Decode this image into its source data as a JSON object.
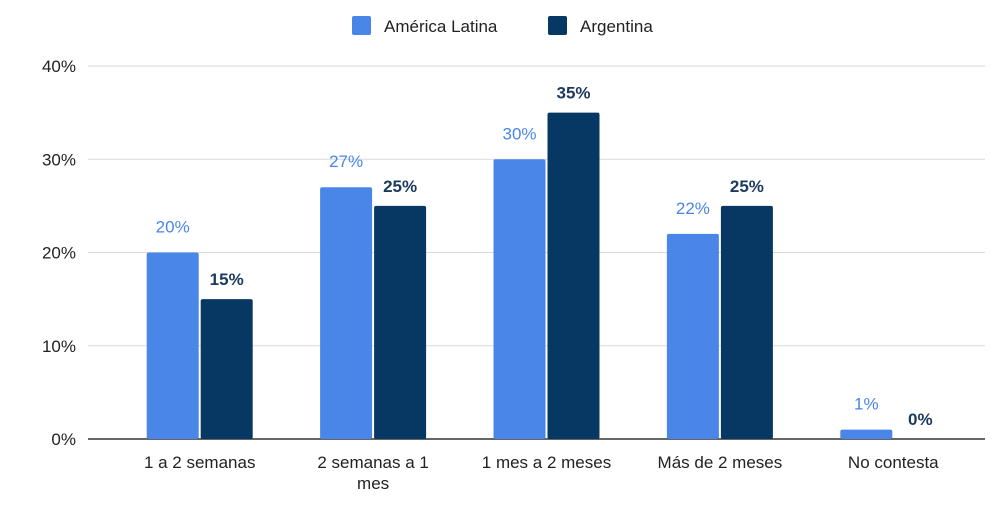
{
  "chart_data": {
    "type": "bar",
    "title": "",
    "xlabel": "",
    "ylabel": "",
    "ylim": [
      0,
      40
    ],
    "yticks": [
      "0%",
      "10%",
      "20%",
      "30%",
      "40%"
    ],
    "ytick_values": [
      0,
      10,
      20,
      30,
      40
    ],
    "grid": true,
    "legend_position": "top-center",
    "categories": [
      [
        "1 a 2 semanas"
      ],
      [
        "2 semanas a 1",
        "mes"
      ],
      [
        "1 mes a 2 meses"
      ],
      [
        "Más de 2 meses"
      ],
      [
        "No contesta"
      ]
    ],
    "series": [
      {
        "name": "América Latina",
        "color": "#4a86e8",
        "values": [
          20,
          27,
          30,
          22,
          1
        ],
        "labels": [
          "20%",
          "27%",
          "30%",
          "22%",
          "1%"
        ]
      },
      {
        "name": "Argentina",
        "color": "#073763",
        "values": [
          15,
          25,
          35,
          25,
          0
        ],
        "labels": [
          "15%",
          "25%",
          "35%",
          "25%",
          "0%"
        ]
      }
    ]
  }
}
